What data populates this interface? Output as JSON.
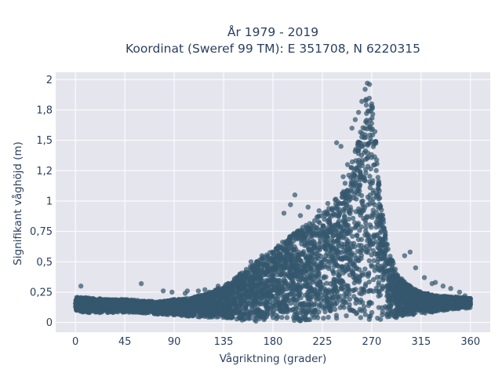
{
  "chart_data": {
    "type": "scatter",
    "title": [
      "År 1979 - 2019",
      "Koordinat (Sweref 99 TM): E 351708, N 6220315"
    ],
    "xlabel": "Vågriktning (grader)",
    "ylabel": "Signifikant våghöjd (m)",
    "xlim": [
      -18,
      378
    ],
    "ylim": [
      -0.08,
      2.06
    ],
    "x_ticks": [
      0,
      45,
      90,
      135,
      180,
      225,
      270,
      315,
      360
    ],
    "x_tick_labels": [
      "0",
      "45",
      "90",
      "135",
      "180",
      "225",
      "270",
      "315",
      "360"
    ],
    "y_ticks": [
      0,
      0.25,
      0.5,
      0.75,
      1,
      1.25,
      1.5,
      1.75,
      2
    ],
    "y_tick_labels": [
      "0",
      "0,25",
      "0,5",
      "0,75",
      "1",
      "1,2",
      "1,5",
      "1,8",
      "2"
    ],
    "grid": true,
    "legend": "none",
    "colors": {
      "marker": "#34586e",
      "plot_background": "#e5e5ee",
      "grid": "#ffffff"
    },
    "envelope": [
      [
        0,
        0.09,
        0.21
      ],
      [
        15,
        0.08,
        0.2
      ],
      [
        30,
        0.08,
        0.19
      ],
      [
        45,
        0.08,
        0.19
      ],
      [
        60,
        0.08,
        0.18
      ],
      [
        75,
        0.07,
        0.17
      ],
      [
        90,
        0.06,
        0.19
      ],
      [
        105,
        0.05,
        0.2
      ],
      [
        120,
        0.04,
        0.24
      ],
      [
        135,
        0.03,
        0.3
      ],
      [
        150,
        0.02,
        0.4
      ],
      [
        165,
        0.01,
        0.5
      ],
      [
        180,
        0.01,
        0.6
      ],
      [
        195,
        0.01,
        0.72
      ],
      [
        210,
        0.01,
        0.8
      ],
      [
        225,
        0.01,
        0.9
      ],
      [
        240,
        0.01,
        1.05
      ],
      [
        250,
        0.01,
        1.25
      ],
      [
        260,
        0.01,
        1.6
      ],
      [
        265,
        0.01,
        1.85
      ],
      [
        268,
        0.01,
        1.97
      ],
      [
        272,
        0.01,
        1.7
      ],
      [
        278,
        0.02,
        1.0
      ],
      [
        285,
        0.03,
        0.6
      ],
      [
        295,
        0.04,
        0.38
      ],
      [
        305,
        0.06,
        0.3
      ],
      [
        315,
        0.07,
        0.25
      ],
      [
        330,
        0.09,
        0.22
      ],
      [
        345,
        0.11,
        0.21
      ],
      [
        360,
        0.12,
        0.2
      ]
    ],
    "outliers": [
      [
        5,
        0.3
      ],
      [
        60,
        0.32
      ],
      [
        200,
        1.05
      ],
      [
        212,
        0.95
      ],
      [
        190,
        0.9
      ],
      [
        196,
        0.97
      ],
      [
        205,
        0.88
      ],
      [
        222,
        0.92
      ],
      [
        230,
        0.98
      ],
      [
        238,
        1.48
      ],
      [
        242,
        1.45
      ],
      [
        244,
        1.2
      ],
      [
        248,
        1.3
      ],
      [
        252,
        1.6
      ],
      [
        255,
        1.67
      ],
      [
        258,
        1.73
      ],
      [
        261,
        1.82
      ],
      [
        264,
        1.92
      ],
      [
        266,
        1.97
      ],
      [
        268,
        1.96
      ],
      [
        270,
        1.8
      ],
      [
        276,
        1.1
      ],
      [
        280,
        0.85
      ],
      [
        283,
        0.65
      ],
      [
        300,
        0.55
      ],
      [
        305,
        0.58
      ],
      [
        310,
        0.45
      ],
      [
        318,
        0.37
      ],
      [
        325,
        0.32
      ],
      [
        328,
        0.33
      ],
      [
        335,
        0.3
      ],
      [
        342,
        0.28
      ],
      [
        350,
        0.25
      ],
      [
        355,
        0.22
      ],
      [
        130,
        0.3
      ],
      [
        145,
        0.36
      ],
      [
        150,
        0.4
      ],
      [
        160,
        0.5
      ],
      [
        170,
        0.55
      ],
      [
        175,
        0.52
      ],
      [
        88,
        0.25
      ],
      [
        100,
        0.24
      ],
      [
        112,
        0.26
      ],
      [
        118,
        0.27
      ],
      [
        122,
        0.25
      ],
      [
        102,
        0.26
      ],
      [
        80,
        0.26
      ]
    ]
  }
}
